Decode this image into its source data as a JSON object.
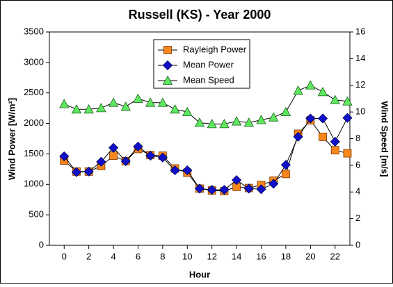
{
  "chart_data": {
    "type": "line",
    "title": "Russell (KS) - Year 2000",
    "x_label": "Hour",
    "y_label": "Wind Power [W/m²]",
    "y2_label": "Wind Speed [m/s]",
    "x": [
      0,
      1,
      2,
      3,
      4,
      5,
      6,
      7,
      8,
      9,
      10,
      11,
      12,
      13,
      14,
      15,
      16,
      17,
      18,
      19,
      20,
      21,
      22,
      23
    ],
    "xlim": [
      -1.2,
      23.2
    ],
    "xticks": [
      0,
      2,
      4,
      6,
      8,
      10,
      12,
      14,
      16,
      18,
      20,
      22
    ],
    "ylim": [
      0,
      3500
    ],
    "yticks": [
      0,
      500,
      1000,
      1500,
      2000,
      2500,
      3000,
      3500
    ],
    "y2lim": [
      0,
      16
    ],
    "y2ticks": [
      0,
      2,
      4,
      6,
      8,
      10,
      12,
      14,
      16
    ],
    "grid": false,
    "legend": "upper center",
    "line_color": "#000000",
    "series": [
      {
        "name": "Rayleigh Power",
        "color": "#f7861c",
        "marker": "square",
        "values": [
          1390,
          1210,
          1210,
          1300,
          1470,
          1380,
          1580,
          1480,
          1470,
          1260,
          1190,
          930,
          900,
          890,
          960,
          940,
          990,
          1060,
          1170,
          1830,
          2050,
          1780,
          1560,
          1510
        ]
      },
      {
        "name": "Mean Power",
        "color": "#1010c8",
        "marker": "diamond",
        "values": [
          1460,
          1200,
          1210,
          1370,
          1600,
          1380,
          1620,
          1470,
          1440,
          1230,
          1230,
          930,
          910,
          910,
          1070,
          930,
          920,
          1010,
          1320,
          1780,
          2080,
          2080,
          1700,
          2090
        ]
      },
      {
        "name": "Mean Speed",
        "color": "#5ee85e",
        "marker": "triangle",
        "axis": "y2",
        "values": [
          10.6,
          10.2,
          10.2,
          10.3,
          10.7,
          10.4,
          11.0,
          10.7,
          10.7,
          10.2,
          10.0,
          9.2,
          9.1,
          9.1,
          9.3,
          9.2,
          9.4,
          9.6,
          10.0,
          11.6,
          12.0,
          11.5,
          10.9,
          10.8
        ]
      }
    ]
  }
}
